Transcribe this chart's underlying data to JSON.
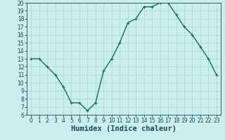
{
  "x": [
    0,
    1,
    2,
    3,
    4,
    5,
    6,
    7,
    8,
    9,
    10,
    11,
    12,
    13,
    14,
    15,
    16,
    17,
    18,
    19,
    20,
    21,
    22,
    23
  ],
  "y": [
    13,
    13,
    12,
    11,
    9.5,
    7.5,
    7.5,
    6.5,
    7.5,
    11.5,
    13,
    15,
    17.5,
    18,
    19.5,
    19.5,
    20,
    20,
    18.5,
    17,
    16,
    14.5,
    13,
    11
  ],
  "line_color": "#1a6b5a",
  "marker": "+",
  "marker_size": 3,
  "marker_linewidth": 0.8,
  "line_width": 1.0,
  "bg_color": "#c8eeee",
  "grid_color": "#b0d8d8",
  "xlabel": "Humidex (Indice chaleur)",
  "xlim": [
    -0.5,
    23.5
  ],
  "ylim": [
    6,
    20
  ],
  "yticks": [
    6,
    7,
    8,
    9,
    10,
    11,
    12,
    13,
    14,
    15,
    16,
    17,
    18,
    19,
    20
  ],
  "xticks": [
    0,
    1,
    2,
    3,
    4,
    5,
    6,
    7,
    8,
    9,
    10,
    11,
    12,
    13,
    14,
    15,
    16,
    17,
    18,
    19,
    20,
    21,
    22,
    23
  ],
  "tick_fontsize": 5.5,
  "xlabel_fontsize": 7.5,
  "label_color": "#1a4a4a",
  "spine_color": "#1a4a4a"
}
